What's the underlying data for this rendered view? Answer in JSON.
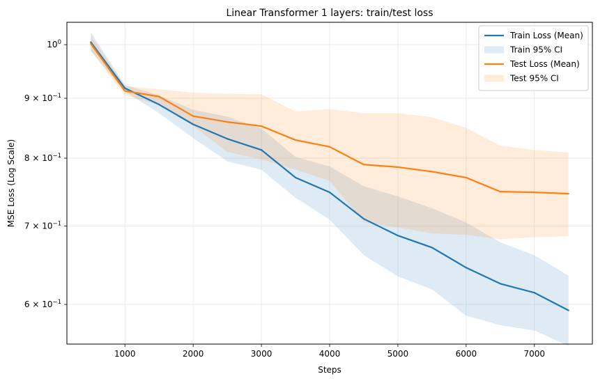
{
  "chart_data": {
    "type": "line",
    "title": "Linear Transformer 1 layers: train/test loss",
    "xlabel": "Steps",
    "ylabel": "MSE Loss (Log Scale)",
    "yscale": "log",
    "xlim": [
      150,
      7850
    ],
    "ylim": [
      0.555,
      1.045
    ],
    "x_ticks": [
      1000,
      2000,
      3000,
      4000,
      5000,
      6000,
      7000
    ],
    "x_tick_labels": [
      "1000",
      "2000",
      "3000",
      "4000",
      "5000",
      "6000",
      "7000"
    ],
    "y_ticks": [
      {
        "value": 1.0,
        "base": "10",
        "exp": "0"
      },
      {
        "value": 0.9,
        "base": "9 × 10",
        "exp": "−1"
      },
      {
        "value": 0.8,
        "base": "8 × 10",
        "exp": "−1"
      },
      {
        "value": 0.7,
        "base": "7 × 10",
        "exp": "−1"
      },
      {
        "value": 0.6,
        "base": "6 × 10",
        "exp": "−1"
      }
    ],
    "grid": true,
    "legend_position": "top-right",
    "x": [
      500,
      1000,
      1500,
      2000,
      2500,
      3000,
      3500,
      4000,
      4500,
      5000,
      5500,
      6000,
      6500,
      7000,
      7500
    ],
    "series": [
      {
        "name": "Train Loss (Mean)",
        "ci_name": "Train 95% CI",
        "color": "#1f77b4",
        "ci_color": "#1f77b4",
        "values": [
          1.005,
          0.918,
          0.889,
          0.855,
          0.831,
          0.813,
          0.77,
          0.748,
          0.71,
          0.687,
          0.671,
          0.645,
          0.625,
          0.614,
          0.593
        ],
        "lower": [
          0.988,
          0.912,
          0.874,
          0.832,
          0.795,
          0.782,
          0.74,
          0.709,
          0.661,
          0.634,
          0.618,
          0.587,
          0.576,
          0.57,
          0.553
        ],
        "upper": [
          1.025,
          0.924,
          0.905,
          0.88,
          0.868,
          0.848,
          0.802,
          0.787,
          0.757,
          0.742,
          0.725,
          0.705,
          0.678,
          0.661,
          0.635
        ]
      },
      {
        "name": "Test Loss (Mean)",
        "ci_name": "Test 95% CI",
        "color": "#ff7f0e",
        "ci_color": "#ff7f0e",
        "values": [
          1.002,
          0.913,
          0.903,
          0.869,
          0.859,
          0.852,
          0.829,
          0.818,
          0.79,
          0.786,
          0.779,
          0.77,
          0.749,
          0.748,
          0.746
        ],
        "lower": [
          0.988,
          0.905,
          0.888,
          0.852,
          0.81,
          0.798,
          0.782,
          0.765,
          0.705,
          0.698,
          0.69,
          0.688,
          0.682,
          0.685,
          0.686
        ],
        "upper": [
          1.018,
          0.922,
          0.916,
          0.91,
          0.908,
          0.907,
          0.877,
          0.881,
          0.874,
          0.874,
          0.867,
          0.849,
          0.82,
          0.813,
          0.809
        ]
      }
    ]
  }
}
